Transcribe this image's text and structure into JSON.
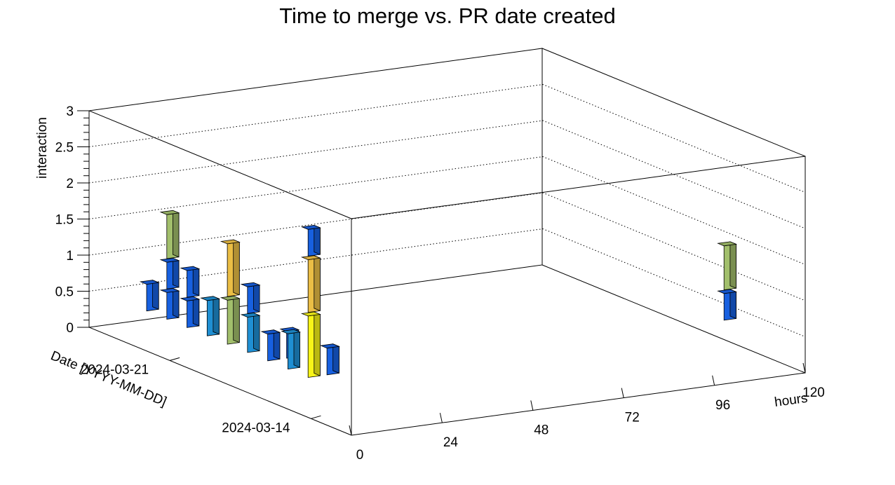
{
  "chart_data": {
    "type": "bar",
    "subtype": "lego3d",
    "title": "Time to merge vs. PR date created",
    "xlabel": "hours",
    "ylabel": "Date [YYYY-MM-DD]",
    "zlabel": "interaction",
    "x_ticks": [
      "0",
      "24",
      "48",
      "72",
      "96",
      "120"
    ],
    "y_ticks": [
      "2024-03-14",
      "2024-03-21"
    ],
    "z_ticks": [
      "0",
      "0.5",
      "1",
      "1.5",
      "2",
      "2.5",
      "3"
    ],
    "xlim": [
      0,
      120
    ],
    "zlim": [
      0,
      3
    ],
    "grid": true,
    "colorscale": [
      "#1760e0",
      "#1f8fd3",
      "#2ab7a8",
      "#a2bf6c",
      "#ebbe45",
      "#f8f518"
    ],
    "bars": [
      {
        "x": 110,
        "y": "2024-03-14",
        "z": 1
      },
      {
        "x": 110,
        "y": "2024-03-14",
        "z": 3
      },
      {
        "x": 5,
        "y": "2024-03-14",
        "z": 1
      },
      {
        "x": 0,
        "y": "2024-03-14",
        "z": 5
      },
      {
        "x": 0,
        "y": "2024-03-14",
        "z": 4
      },
      {
        "x": 0,
        "y": "2024-03-14",
        "z": 1
      },
      {
        "x": 0,
        "y": "2024-03-15",
        "z": 2
      },
      {
        "x": 5,
        "y": "2024-03-16",
        "z": 1
      },
      {
        "x": 0,
        "y": "2024-03-16",
        "z": 1
      },
      {
        "x": 0,
        "y": "2024-03-17",
        "z": 2
      },
      {
        "x": 0,
        "y": "2024-03-17",
        "z": 1
      },
      {
        "x": 0,
        "y": "2024-03-18",
        "z": 3
      },
      {
        "x": 0,
        "y": "2024-03-18",
        "z": 4
      },
      {
        "x": 0,
        "y": "2024-03-19",
        "z": 2
      },
      {
        "x": 0,
        "y": "2024-03-20",
        "z": 1
      },
      {
        "x": 0,
        "y": "2024-03-20",
        "z": 1
      },
      {
        "x": 0,
        "y": "2024-03-21",
        "z": 1
      },
      {
        "x": 0,
        "y": "2024-03-21",
        "z": 1
      },
      {
        "x": 0,
        "y": "2024-03-21",
        "z": 3
      },
      {
        "x": 0,
        "y": "2024-03-22",
        "z": 1
      }
    ]
  }
}
